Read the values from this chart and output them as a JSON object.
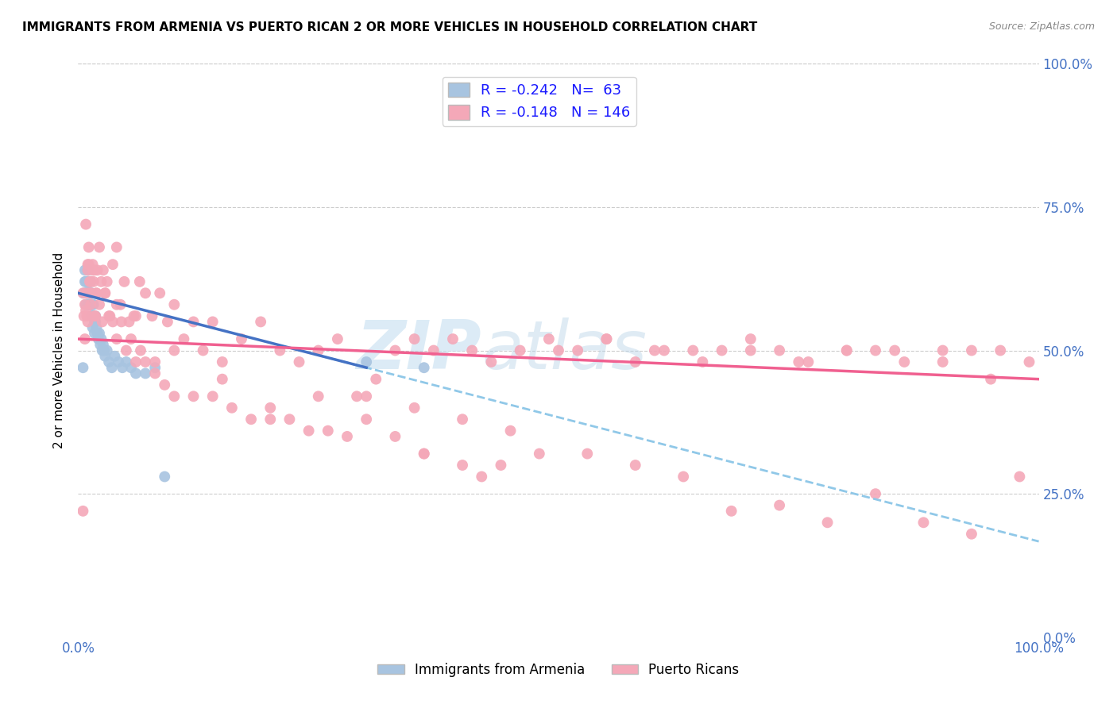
{
  "title": "IMMIGRANTS FROM ARMENIA VS PUERTO RICAN 2 OR MORE VEHICLES IN HOUSEHOLD CORRELATION CHART",
  "source": "Source: ZipAtlas.com",
  "ylabel": "2 or more Vehicles in Household",
  "xlim": [
    0.0,
    1.0
  ],
  "ylim": [
    0.0,
    1.0
  ],
  "legend_labels": [
    "Immigrants from Armenia",
    "Puerto Ricans"
  ],
  "r_armenia": -0.242,
  "n_armenia": 63,
  "r_puerto": -0.148,
  "n_puerto": 146,
  "color_armenia": "#a8c4e0",
  "color_puerto": "#f4a8b8",
  "trendline_armenia": "#4472c4",
  "trendline_puerto": "#f06090",
  "trendline_dashed_color": "#90c8e8",
  "background_color": "#ffffff",
  "grid_color": "#cccccc",
  "watermark_zip": "ZIP",
  "watermark_atlas": "atlas",
  "armenia_x": [
    0.005,
    0.006,
    0.007,
    0.007,
    0.008,
    0.008,
    0.008,
    0.009,
    0.009,
    0.009,
    0.01,
    0.01,
    0.01,
    0.01,
    0.011,
    0.011,
    0.011,
    0.011,
    0.012,
    0.012,
    0.012,
    0.012,
    0.012,
    0.013,
    0.013,
    0.013,
    0.013,
    0.014,
    0.014,
    0.014,
    0.015,
    0.015,
    0.015,
    0.016,
    0.016,
    0.017,
    0.017,
    0.018,
    0.018,
    0.019,
    0.02,
    0.021,
    0.022,
    0.023,
    0.024,
    0.025,
    0.026,
    0.027,
    0.028,
    0.03,
    0.032,
    0.035,
    0.038,
    0.042,
    0.046,
    0.05,
    0.055,
    0.06,
    0.07,
    0.08,
    0.09,
    0.3,
    0.36
  ],
  "armenia_y": [
    0.47,
    0.6,
    0.62,
    0.64,
    0.6,
    0.62,
    0.58,
    0.6,
    0.62,
    0.6,
    0.58,
    0.6,
    0.62,
    0.64,
    0.6,
    0.58,
    0.62,
    0.6,
    0.6,
    0.58,
    0.62,
    0.58,
    0.6,
    0.58,
    0.6,
    0.62,
    0.58,
    0.58,
    0.56,
    0.6,
    0.58,
    0.56,
    0.54,
    0.56,
    0.58,
    0.55,
    0.53,
    0.55,
    0.56,
    0.54,
    0.53,
    0.52,
    0.53,
    0.51,
    0.52,
    0.5,
    0.51,
    0.5,
    0.49,
    0.5,
    0.48,
    0.47,
    0.49,
    0.48,
    0.47,
    0.48,
    0.47,
    0.46,
    0.46,
    0.47,
    0.28,
    0.48,
    0.47
  ],
  "puerto_x": [
    0.005,
    0.006,
    0.007,
    0.008,
    0.009,
    0.01,
    0.01,
    0.011,
    0.012,
    0.013,
    0.014,
    0.015,
    0.016,
    0.017,
    0.018,
    0.019,
    0.02,
    0.022,
    0.024,
    0.026,
    0.028,
    0.03,
    0.033,
    0.036,
    0.04,
    0.044,
    0.048,
    0.053,
    0.058,
    0.064,
    0.07,
    0.077,
    0.085,
    0.093,
    0.1,
    0.11,
    0.12,
    0.13,
    0.14,
    0.15,
    0.17,
    0.19,
    0.21,
    0.23,
    0.25,
    0.27,
    0.29,
    0.31,
    0.33,
    0.35,
    0.37,
    0.39,
    0.41,
    0.43,
    0.46,
    0.49,
    0.52,
    0.55,
    0.58,
    0.61,
    0.64,
    0.67,
    0.7,
    0.73,
    0.76,
    0.8,
    0.83,
    0.86,
    0.9,
    0.93,
    0.96,
    0.99,
    0.005,
    0.007,
    0.008,
    0.009,
    0.01,
    0.011,
    0.012,
    0.013,
    0.015,
    0.017,
    0.019,
    0.022,
    0.025,
    0.028,
    0.032,
    0.036,
    0.04,
    0.045,
    0.05,
    0.055,
    0.06,
    0.065,
    0.07,
    0.08,
    0.09,
    0.1,
    0.12,
    0.14,
    0.16,
    0.18,
    0.2,
    0.22,
    0.24,
    0.26,
    0.28,
    0.3,
    0.33,
    0.36,
    0.4,
    0.44,
    0.48,
    0.53,
    0.58,
    0.63,
    0.68,
    0.73,
    0.78,
    0.83,
    0.88,
    0.93,
    0.98,
    0.5,
    0.55,
    0.6,
    0.65,
    0.7,
    0.75,
    0.8,
    0.85,
    0.9,
    0.95,
    0.35,
    0.4,
    0.45,
    0.25,
    0.3,
    0.2,
    0.15,
    0.1,
    0.08,
    0.06,
    0.04,
    0.36,
    0.42
  ],
  "puerto_y": [
    0.22,
    0.56,
    0.52,
    0.57,
    0.56,
    0.55,
    0.65,
    0.68,
    0.62,
    0.58,
    0.6,
    0.65,
    0.62,
    0.64,
    0.56,
    0.6,
    0.64,
    0.68,
    0.62,
    0.64,
    0.6,
    0.62,
    0.56,
    0.65,
    0.68,
    0.58,
    0.62,
    0.55,
    0.56,
    0.62,
    0.6,
    0.56,
    0.6,
    0.55,
    0.58,
    0.52,
    0.55,
    0.5,
    0.55,
    0.48,
    0.52,
    0.55,
    0.5,
    0.48,
    0.5,
    0.52,
    0.42,
    0.45,
    0.5,
    0.52,
    0.5,
    0.52,
    0.5,
    0.48,
    0.5,
    0.52,
    0.5,
    0.52,
    0.48,
    0.5,
    0.5,
    0.5,
    0.52,
    0.5,
    0.48,
    0.5,
    0.5,
    0.48,
    0.5,
    0.5,
    0.5,
    0.48,
    0.6,
    0.58,
    0.72,
    0.6,
    0.64,
    0.65,
    0.6,
    0.62,
    0.64,
    0.56,
    0.6,
    0.58,
    0.55,
    0.6,
    0.56,
    0.55,
    0.52,
    0.55,
    0.5,
    0.52,
    0.48,
    0.5,
    0.48,
    0.46,
    0.44,
    0.42,
    0.42,
    0.42,
    0.4,
    0.38,
    0.4,
    0.38,
    0.36,
    0.36,
    0.35,
    0.38,
    0.35,
    0.32,
    0.3,
    0.3,
    0.32,
    0.32,
    0.3,
    0.28,
    0.22,
    0.23,
    0.2,
    0.25,
    0.2,
    0.18,
    0.28,
    0.5,
    0.52,
    0.5,
    0.48,
    0.5,
    0.48,
    0.5,
    0.5,
    0.48,
    0.45,
    0.4,
    0.38,
    0.36,
    0.42,
    0.42,
    0.38,
    0.45,
    0.5,
    0.48,
    0.56,
    0.58,
    0.32,
    0.28
  ]
}
